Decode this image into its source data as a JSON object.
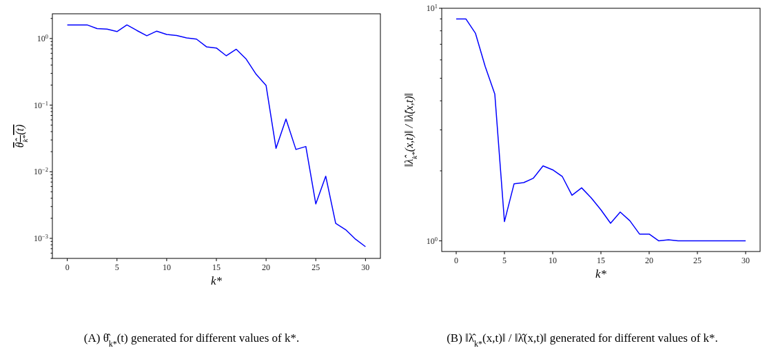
{
  "chart_data": [
    {
      "type": "line",
      "xlabel": "k*",
      "ylabel": "θ̂$_{k*}$(t)",
      "annotations": [
        "(A) θ̂$_{k*}$(t) generated for different values of k*."
      ],
      "log": "y",
      "grid": false,
      "marker": "none",
      "line_style": "solid",
      "x": [
        0,
        1,
        2,
        3,
        4,
        5,
        6,
        7,
        8,
        9,
        10,
        11,
        12,
        13,
        14,
        15,
        16,
        17,
        18,
        19,
        20,
        21,
        22,
        23,
        24,
        25,
        26,
        27,
        28,
        29,
        30
      ],
      "series": [
        {
          "color": "#0000ff",
          "values": [
            1.6,
            1.6,
            1.6,
            1.41,
            1.38,
            1.27,
            1.6,
            1.32,
            1.1,
            1.29,
            1.15,
            1.11,
            1.02,
            0.98,
            0.75,
            0.72,
            0.55,
            0.69,
            0.49,
            0.29,
            0.197,
            0.0224,
            0.0618,
            0.0216,
            0.0239,
            0.00329,
            0.00858,
            0.00168,
            0.00135,
            0.00097,
            0.00075
          ]
        }
      ],
      "xlim": [
        -1.5,
        31.5
      ],
      "xticks": [
        0,
        5,
        10,
        15,
        20,
        25,
        30
      ],
      "ylim": [
        0.0005,
        2.35
      ],
      "yticks": [
        {
          "value": 0.0005,
          "label": null
        },
        {
          "value": 0.0006,
          "label": null
        },
        {
          "value": 0.0007,
          "label": null
        },
        {
          "value": 0.0008,
          "label": null
        },
        {
          "value": 0.0009,
          "label": null
        },
        {
          "value": 0.001,
          "label": "10$^{−3}$"
        },
        {
          "value": 0.002,
          "label": null
        },
        {
          "value": 0.003,
          "label": null
        },
        {
          "value": 0.004,
          "label": null
        },
        {
          "value": 0.005,
          "label": null
        },
        {
          "value": 0.006,
          "label": null
        },
        {
          "value": 0.007,
          "label": null
        },
        {
          "value": 0.008,
          "label": null
        },
        {
          "value": 0.009,
          "label": null
        },
        {
          "value": 0.01,
          "label": "10$^{−2}$"
        },
        {
          "value": 0.02,
          "label": null
        },
        {
          "value": 0.03,
          "label": null
        },
        {
          "value": 0.04,
          "label": null
        },
        {
          "value": 0.05,
          "label": null
        },
        {
          "value": 0.06,
          "label": null
        },
        {
          "value": 0.07,
          "label": null
        },
        {
          "value": 0.08,
          "label": null
        },
        {
          "value": 0.09,
          "label": null
        },
        {
          "value": 0.1,
          "label": "10$^{−1}$"
        },
        {
          "value": 0.2,
          "label": null
        },
        {
          "value": 0.3,
          "label": null
        },
        {
          "value": 0.4,
          "label": null
        },
        {
          "value": 0.5,
          "label": null
        },
        {
          "value": 0.6,
          "label": null
        },
        {
          "value": 0.7,
          "label": null
        },
        {
          "value": 0.8,
          "label": null
        },
        {
          "value": 0.9,
          "label": null
        },
        {
          "value": 1,
          "label": "10$^{0}$"
        },
        {
          "value": 2,
          "label": null
        }
      ]
    },
    {
      "type": "line",
      "xlabel": "k*",
      "ylabel": "‖λ̂$_{k*}$(x,t)‖ / ‖λ̂(x,t)‖",
      "annotations": [
        "(B) ‖λ̂$_{k*}$(x,t)‖ / ‖λ̂(x,t)‖ generated for different values of k*."
      ],
      "log": "y",
      "grid": false,
      "marker": "none",
      "line_style": "solid",
      "x": [
        0,
        1,
        2,
        3,
        4,
        5,
        6,
        7,
        8,
        9,
        10,
        11,
        12,
        13,
        14,
        15,
        16,
        17,
        18,
        19,
        20,
        21,
        22,
        23,
        24,
        25,
        26,
        27,
        28,
        29,
        30
      ],
      "series": [
        {
          "color": "#0000ff",
          "values": [
            9.0,
            9.0,
            7.8,
            5.63,
            4.28,
            1.21,
            1.76,
            1.78,
            1.86,
            2.1,
            2.02,
            1.89,
            1.57,
            1.69,
            1.53,
            1.36,
            1.19,
            1.33,
            1.22,
            1.07,
            1.07,
            1.0,
            1.01,
            1.0,
            1.0,
            1.0,
            1.0,
            1.0,
            1.0,
            1.0,
            1.0
          ]
        }
      ],
      "xlim": [
        -1.5,
        31.5
      ],
      "xticks": [
        0,
        5,
        10,
        15,
        20,
        25,
        30
      ],
      "ylim": [
        0.9,
        10
      ],
      "yticks": [
        {
          "value": 1,
          "label": "10$^{0}$"
        },
        {
          "value": 2,
          "label": null
        },
        {
          "value": 3,
          "label": null
        },
        {
          "value": 4,
          "label": null
        },
        {
          "value": 5,
          "label": null
        },
        {
          "value": 6,
          "label": null
        },
        {
          "value": 7,
          "label": null
        },
        {
          "value": 8,
          "label": null
        },
        {
          "value": 9,
          "label": null
        },
        {
          "value": 10,
          "label": "10$^{1}$"
        }
      ]
    }
  ]
}
